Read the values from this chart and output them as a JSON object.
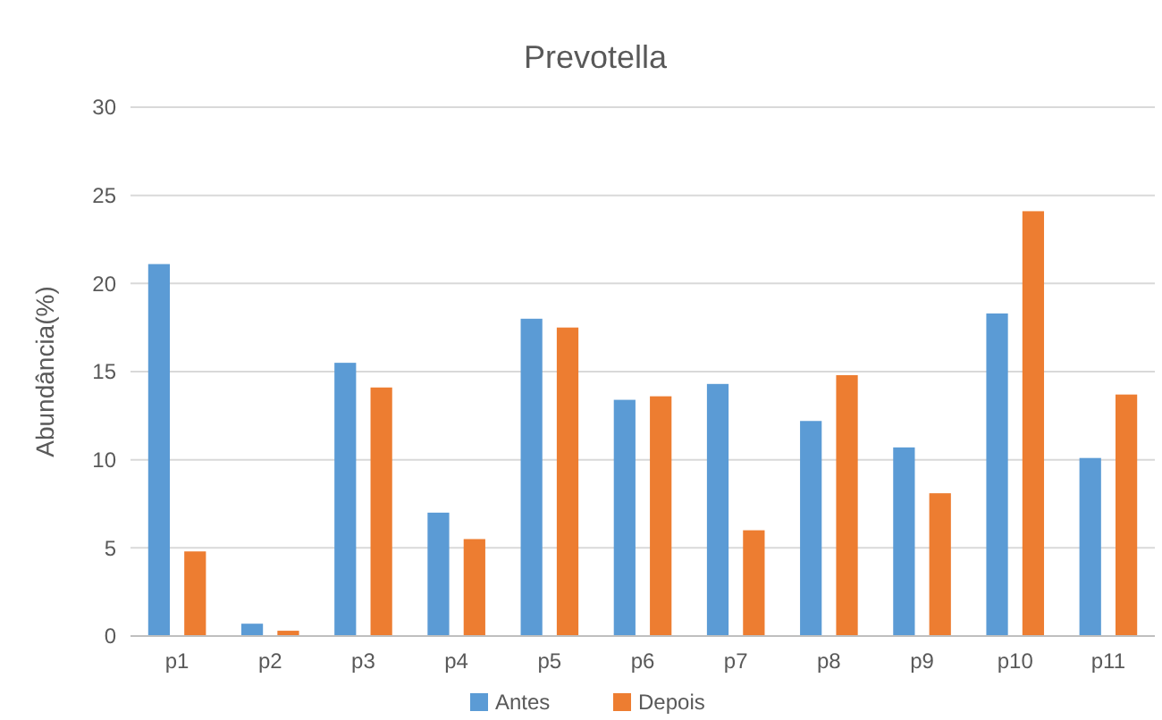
{
  "chart_data": {
    "type": "bar",
    "title": "Prevotella",
    "ylabel": "Abundância(%)",
    "categories": [
      "p1",
      "p2",
      "p3",
      "p4",
      "p5",
      "p6",
      "p7",
      "p8",
      "p9",
      "p10",
      "p11"
    ],
    "series": [
      {
        "name": "Antes",
        "color": "#5b9bd5",
        "values": [
          21.1,
          0.7,
          15.5,
          7.0,
          18.0,
          13.4,
          14.3,
          12.2,
          10.7,
          18.3,
          10.1
        ]
      },
      {
        "name": "Depois",
        "color": "#ed7d31",
        "values": [
          4.8,
          0.3,
          14.1,
          5.5,
          17.5,
          13.6,
          6.0,
          14.8,
          8.1,
          24.1,
          13.7
        ]
      }
    ],
    "ylim": [
      0,
      30
    ],
    "yticks": [
      0,
      5,
      10,
      15,
      20,
      25,
      30
    ],
    "grid": "y",
    "legend": "bottom"
  }
}
